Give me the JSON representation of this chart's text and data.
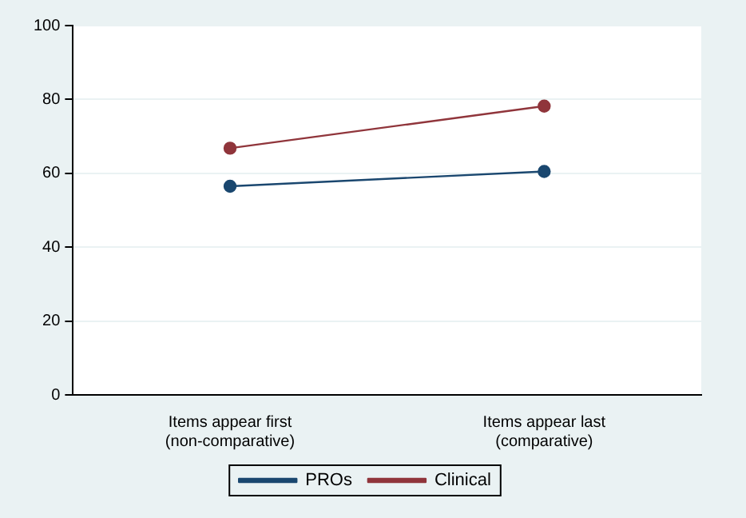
{
  "chart_data": {
    "type": "line",
    "categories": [
      "Items appear first\n(non-comparative)",
      "Items appear last\n(comparative)"
    ],
    "series": [
      {
        "name": "PROs",
        "color": "#1a476f",
        "values": [
          56.5,
          60.5
        ]
      },
      {
        "name": "Clinical",
        "color": "#90353b",
        "values": [
          66.8,
          78.2
        ]
      }
    ],
    "ylim": [
      0,
      100
    ],
    "yticks": [
      0,
      20,
      40,
      60,
      80,
      100
    ],
    "grid": "y",
    "legend": "bottom",
    "marker": "circle"
  }
}
